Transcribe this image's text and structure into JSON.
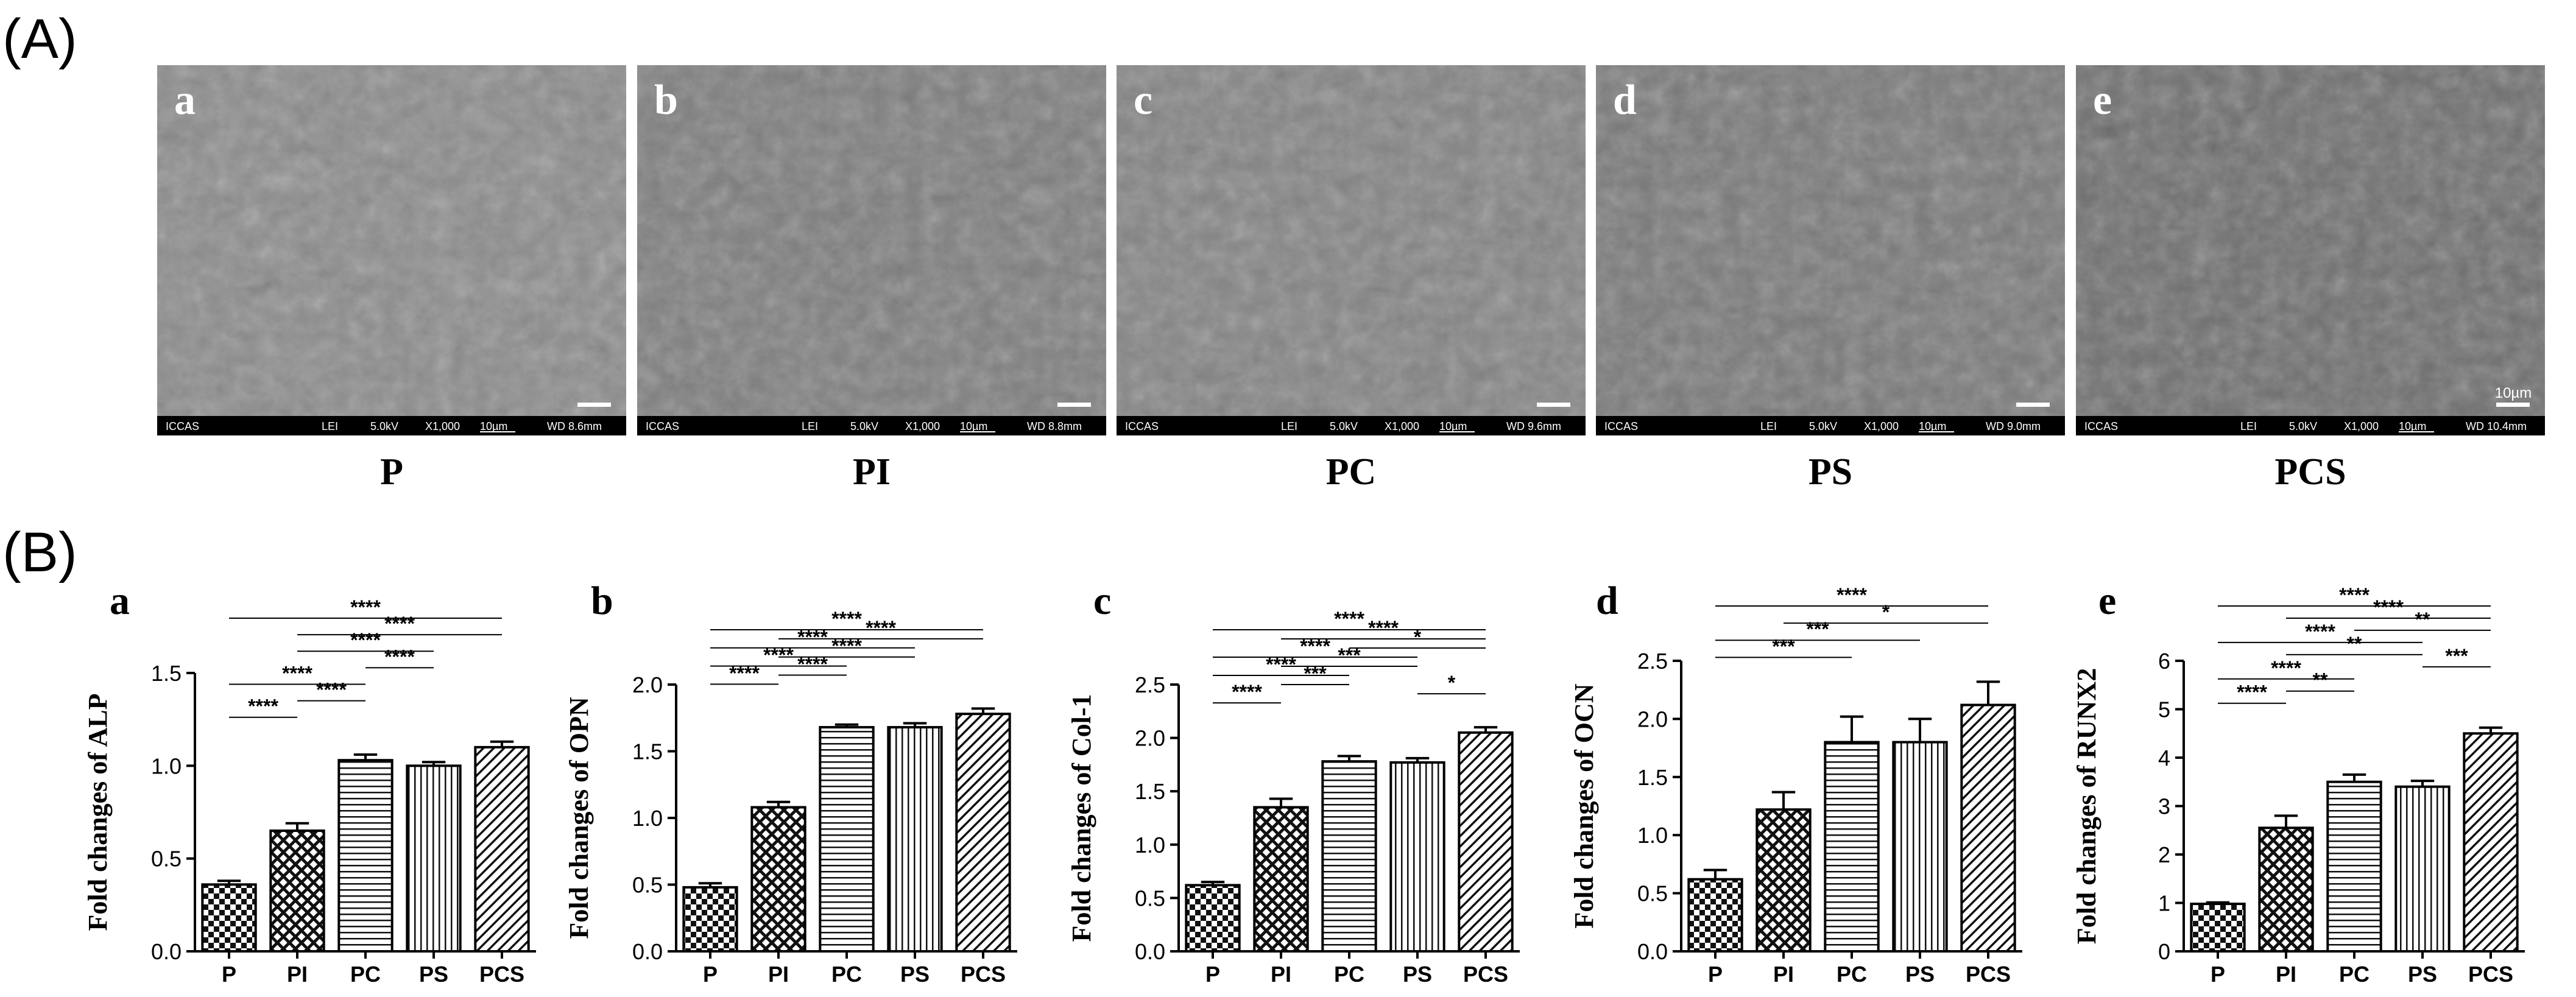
{
  "panel_labels": {
    "A": "(A)",
    "B": "(B)"
  },
  "sem": {
    "panels": [
      {
        "letter": "a",
        "caption": "P",
        "footer": [
          "ICCAS",
          "LEI",
          "5.0kV",
          "X1,000",
          "10µm",
          "WD 8.6mm"
        ],
        "scale": ""
      },
      {
        "letter": "b",
        "caption": "PI",
        "footer": [
          "ICCAS",
          "LEI",
          "5.0kV",
          "X1,000",
          "10µm",
          "WD 8.8mm"
        ],
        "scale": ""
      },
      {
        "letter": "c",
        "caption": "PC",
        "footer": [
          "ICCAS",
          "LEI",
          "5.0kV",
          "X1,000",
          "10µm",
          "WD 9.6mm"
        ],
        "scale": ""
      },
      {
        "letter": "d",
        "caption": "PS",
        "footer": [
          "ICCAS",
          "LEI",
          "5.0kV",
          "X1,000",
          "10µm",
          "WD 9.0mm"
        ],
        "scale": ""
      },
      {
        "letter": "e",
        "caption": "PCS",
        "footer": [
          "ICCAS",
          "LEI",
          "5.0kV",
          "X1,000",
          "10µm",
          "WD 10.4mm"
        ],
        "scale": "10µm"
      }
    ]
  },
  "chart_data": [
    {
      "type": "bar",
      "letter": "a",
      "ylabel": "Fold changes of ALP",
      "categories": [
        "P",
        "PI",
        "PC",
        "PS",
        "PCS"
      ],
      "values": [
        0.36,
        0.65,
        1.03,
        1.0,
        1.1
      ],
      "errors": [
        0.02,
        0.04,
        0.03,
        0.02,
        0.03
      ],
      "ylim": [
        0,
        1.5
      ],
      "yticks": [
        "0.0",
        "0.5",
        "1.0",
        "1.5"
      ],
      "brackets": [
        {
          "from": 0,
          "to": 4,
          "label": "****"
        },
        {
          "from": 1,
          "to": 4,
          "label": "****"
        },
        {
          "from": 1,
          "to": 3,
          "label": "****"
        },
        {
          "from": 2,
          "to": 3,
          "label": "****"
        },
        {
          "from": 0,
          "to": 2,
          "label": "****"
        },
        {
          "from": 1,
          "to": 2,
          "label": "****"
        },
        {
          "from": 0,
          "to": 1,
          "label": "****"
        }
      ]
    },
    {
      "type": "bar",
      "letter": "b",
      "ylabel": "Fold changes of OPN",
      "categories": [
        "P",
        "PI",
        "PC",
        "PS",
        "PCS"
      ],
      "values": [
        0.48,
        1.08,
        1.68,
        1.68,
        1.78
      ],
      "errors": [
        0.03,
        0.04,
        0.02,
        0.03,
        0.04
      ],
      "ylim": [
        0,
        2.0
      ],
      "yticks": [
        "0.0",
        "0.5",
        "1.0",
        "1.5",
        "2.0"
      ],
      "brackets": [
        {
          "from": 0,
          "to": 4,
          "label": "****"
        },
        {
          "from": 1,
          "to": 4,
          "label": "****"
        },
        {
          "from": 0,
          "to": 3,
          "label": "****"
        },
        {
          "from": 1,
          "to": 3,
          "label": "****"
        },
        {
          "from": 0,
          "to": 2,
          "label": "****"
        },
        {
          "from": 1,
          "to": 2,
          "label": "****"
        },
        {
          "from": 0,
          "to": 1,
          "label": "****"
        }
      ]
    },
    {
      "type": "bar",
      "letter": "c",
      "ylabel": "Fold changes of Col-1",
      "categories": [
        "P",
        "PI",
        "PC",
        "PS",
        "PCS"
      ],
      "values": [
        0.62,
        1.35,
        1.78,
        1.77,
        2.05
      ],
      "errors": [
        0.03,
        0.08,
        0.05,
        0.04,
        0.05
      ],
      "ylim": [
        0,
        2.5
      ],
      "yticks": [
        "0.0",
        "0.5",
        "1.0",
        "1.5",
        "2.0",
        "2.5"
      ],
      "brackets": [
        {
          "from": 0,
          "to": 4,
          "label": "****"
        },
        {
          "from": 1,
          "to": 4,
          "label": "****"
        },
        {
          "from": 2,
          "to": 4,
          "label": "*"
        },
        {
          "from": 0,
          "to": 3,
          "label": "****"
        },
        {
          "from": 1,
          "to": 3,
          "label": "***"
        },
        {
          "from": 0,
          "to": 2,
          "label": "****"
        },
        {
          "from": 1,
          "to": 2,
          "label": "***"
        },
        {
          "from": 3,
          "to": 4,
          "label": "*"
        },
        {
          "from": 0,
          "to": 1,
          "label": "****"
        }
      ]
    },
    {
      "type": "bar",
      "letter": "d",
      "ylabel": "Fold changes of OCN",
      "categories": [
        "P",
        "PI",
        "PC",
        "PS",
        "PCS"
      ],
      "values": [
        0.62,
        1.22,
        1.8,
        1.8,
        2.12
      ],
      "errors": [
        0.08,
        0.15,
        0.22,
        0.2,
        0.2
      ],
      "ylim": [
        0,
        2.5
      ],
      "yticks": [
        "0.0",
        "0.5",
        "1.0",
        "1.5",
        "2.0",
        "2.5"
      ],
      "brackets": [
        {
          "from": 0,
          "to": 4,
          "label": "****"
        },
        {
          "from": 1,
          "to": 4,
          "label": "*"
        },
        {
          "from": 0,
          "to": 3,
          "label": "***"
        },
        {
          "from": 0,
          "to": 2,
          "label": "***"
        }
      ]
    },
    {
      "type": "bar",
      "letter": "e",
      "ylabel": "Fold changes of RUNX2",
      "categories": [
        "P",
        "PI",
        "PC",
        "PS",
        "PCS"
      ],
      "values": [
        0.98,
        2.55,
        3.5,
        3.4,
        4.5
      ],
      "errors": [
        0.03,
        0.25,
        0.15,
        0.12,
        0.12
      ],
      "ylim": [
        0,
        6
      ],
      "yticks": [
        "0",
        "1",
        "2",
        "3",
        "4",
        "5",
        "6"
      ],
      "brackets": [
        {
          "from": 0,
          "to": 4,
          "label": "****"
        },
        {
          "from": 1,
          "to": 4,
          "label": "****"
        },
        {
          "from": 2,
          "to": 4,
          "label": "**"
        },
        {
          "from": 0,
          "to": 3,
          "label": "****"
        },
        {
          "from": 1,
          "to": 3,
          "label": "**"
        },
        {
          "from": 3,
          "to": 4,
          "label": "***"
        },
        {
          "from": 0,
          "to": 2,
          "label": "****"
        },
        {
          "from": 1,
          "to": 2,
          "label": "**"
        },
        {
          "from": 0,
          "to": 1,
          "label": "****"
        }
      ]
    }
  ]
}
